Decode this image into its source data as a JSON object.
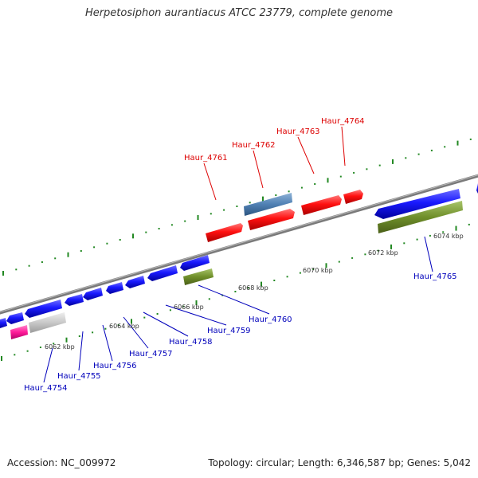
{
  "title": "Herpetosiphon aurantiacus ATCC 23779, complete genome",
  "footer": {
    "accession": "Accession: NC_009972",
    "stats": "Topology: circular; Length: 6,346,587 bp; Genes: 5,042"
  },
  "colors": {
    "label_red": "#dd0000",
    "label_blue": "#0000bb",
    "tick_green": "#228822",
    "backbone": "#888888"
  },
  "top_labels": [
    "Haur_4761",
    "Haur_4762",
    "Haur_4763",
    "Haur_4764"
  ],
  "bottom_labels": [
    "Haur_4754",
    "Haur_4755",
    "Haur_4756",
    "Haur_4757",
    "Haur_4758",
    "Haur_4759",
    "Haur_4760",
    "Haur_4765"
  ],
  "kbp_labels": [
    "6062 kbp",
    "6064 kbp",
    "6066 kbp",
    "6068 kbp",
    "6070 kbp",
    "6072 kbp",
    "6074 kbp"
  ]
}
